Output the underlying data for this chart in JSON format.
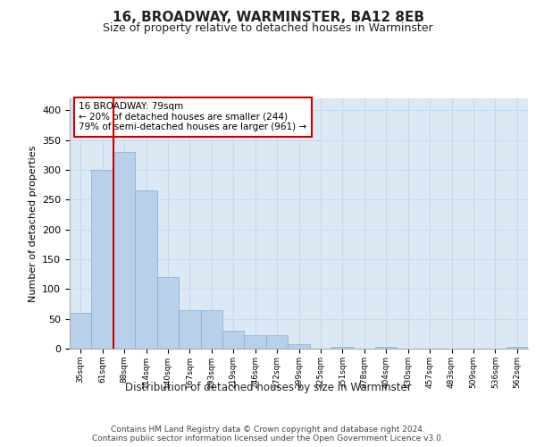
{
  "title": "16, BROADWAY, WARMINSTER, BA12 8EB",
  "subtitle": "Size of property relative to detached houses in Warminster",
  "xlabel": "Distribution of detached houses by size in Warminster",
  "ylabel": "Number of detached properties",
  "categories": [
    "35sqm",
    "61sqm",
    "88sqm",
    "114sqm",
    "140sqm",
    "167sqm",
    "193sqm",
    "219sqm",
    "246sqm",
    "272sqm",
    "299sqm",
    "325sqm",
    "351sqm",
    "378sqm",
    "404sqm",
    "430sqm",
    "457sqm",
    "483sqm",
    "509sqm",
    "536sqm",
    "562sqm"
  ],
  "values": [
    60,
    300,
    330,
    265,
    120,
    65,
    65,
    30,
    22,
    22,
    8,
    0,
    3,
    0,
    3,
    0,
    0,
    0,
    0,
    0,
    3
  ],
  "bar_color": "#b8d0ea",
  "bar_edge_color": "#7aafd4",
  "grid_color": "#c5d9ec",
  "background_color": "#dce9f5",
  "vline_x": 1.5,
  "vline_color": "#cc0000",
  "annotation_text": "16 BROADWAY: 79sqm\n← 20% of detached houses are smaller (244)\n79% of semi-detached houses are larger (961) →",
  "annotation_box_color": "#ffffff",
  "annotation_box_edge": "#cc0000",
  "footer": "Contains HM Land Registry data © Crown copyright and database right 2024.\nContains public sector information licensed under the Open Government Licence v3.0.",
  "ylim": [
    0,
    420
  ],
  "yticks": [
    0,
    50,
    100,
    150,
    200,
    250,
    300,
    350,
    400
  ],
  "title_fontsize": 11,
  "subtitle_fontsize": 9
}
